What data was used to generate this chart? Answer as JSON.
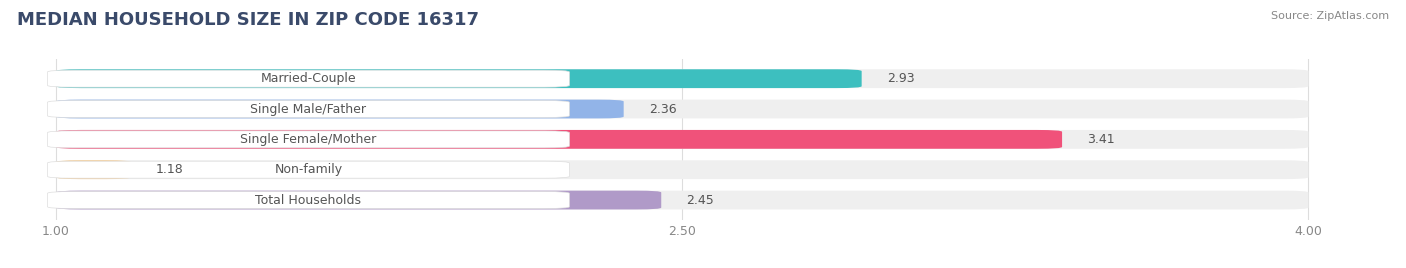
{
  "title": "MEDIAN HOUSEHOLD SIZE IN ZIP CODE 16317",
  "source": "Source: ZipAtlas.com",
  "categories": [
    "Married-Couple",
    "Single Male/Father",
    "Single Female/Mother",
    "Non-family",
    "Total Households"
  ],
  "values": [
    2.93,
    2.36,
    3.41,
    1.18,
    2.45
  ],
  "bar_colors": [
    "#3DBFBF",
    "#92B4E8",
    "#F0527A",
    "#F5C88A",
    "#B09AC8"
  ],
  "bar_bg_color": "#EFEFEF",
  "label_box_color": "#FFFFFF",
  "xmin": 1.0,
  "xmax": 4.0,
  "xticks": [
    1.0,
    2.5,
    4.0
  ],
  "background_color": "#FFFFFF",
  "title_fontsize": 13,
  "label_fontsize": 9,
  "value_fontsize": 9,
  "source_fontsize": 8,
  "title_color": "#3A4A6A",
  "label_color": "#555555",
  "value_color": "#555555",
  "source_color": "#888888",
  "tick_color": "#888888"
}
